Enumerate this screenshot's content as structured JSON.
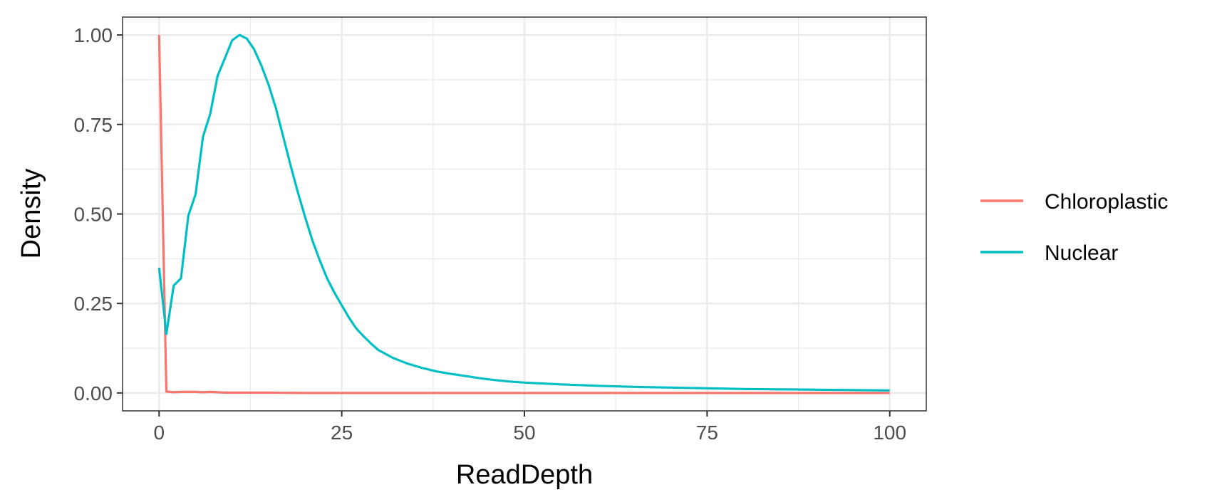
{
  "chart_data": {
    "type": "line",
    "xlabel": "ReadDepth",
    "ylabel": "Density",
    "xlim": [
      -5,
      105
    ],
    "ylim": [
      -0.05,
      1.05
    ],
    "x_ticks": [
      0,
      25,
      50,
      75,
      100
    ],
    "x_tick_labels": [
      "0",
      "25",
      "50",
      "75",
      "100"
    ],
    "y_ticks": [
      0,
      0.25,
      0.5,
      0.75,
      1.0
    ],
    "y_tick_labels": [
      "0.00",
      "0.25",
      "0.50",
      "0.75",
      "1.00"
    ],
    "grid": true,
    "legend_position": "right",
    "series": [
      {
        "name": "Chloroplastic",
        "color": "#F8766D",
        "x": [
          0,
          1,
          2,
          3,
          4,
          5,
          6,
          7,
          8,
          9,
          10,
          12,
          15,
          20,
          30,
          40,
          50,
          60,
          70,
          80,
          90,
          100
        ],
        "values": [
          1.0,
          0.004,
          0.002,
          0.003,
          0.003,
          0.003,
          0.002,
          0.003,
          0.002,
          0.001,
          0.001,
          0.001,
          0.001,
          0.0,
          0.0,
          0.0,
          0.0,
          0.0,
          0.0,
          0.0,
          0.0,
          0.0
        ]
      },
      {
        "name": "Nuclear",
        "color": "#00BFC4",
        "x": [
          0,
          1,
          2,
          3,
          4,
          5,
          6,
          7,
          8,
          9,
          10,
          11,
          12,
          13,
          14,
          15,
          16,
          17,
          18,
          19,
          20,
          21,
          22,
          23,
          24,
          25,
          26,
          27,
          28,
          29,
          30,
          32,
          34,
          36,
          38,
          40,
          42,
          44,
          46,
          48,
          50,
          55,
          60,
          65,
          70,
          75,
          80,
          85,
          90,
          95,
          100
        ],
        "values": [
          0.35,
          0.165,
          0.3,
          0.32,
          0.495,
          0.555,
          0.715,
          0.78,
          0.885,
          0.935,
          0.985,
          1.0,
          0.99,
          0.96,
          0.915,
          0.86,
          0.795,
          0.715,
          0.635,
          0.56,
          0.49,
          0.425,
          0.37,
          0.32,
          0.28,
          0.245,
          0.21,
          0.18,
          0.158,
          0.138,
          0.12,
          0.098,
          0.082,
          0.07,
          0.06,
          0.053,
          0.047,
          0.041,
          0.036,
          0.032,
          0.029,
          0.024,
          0.02,
          0.017,
          0.015,
          0.013,
          0.011,
          0.01,
          0.009,
          0.008,
          0.007
        ]
      }
    ]
  }
}
